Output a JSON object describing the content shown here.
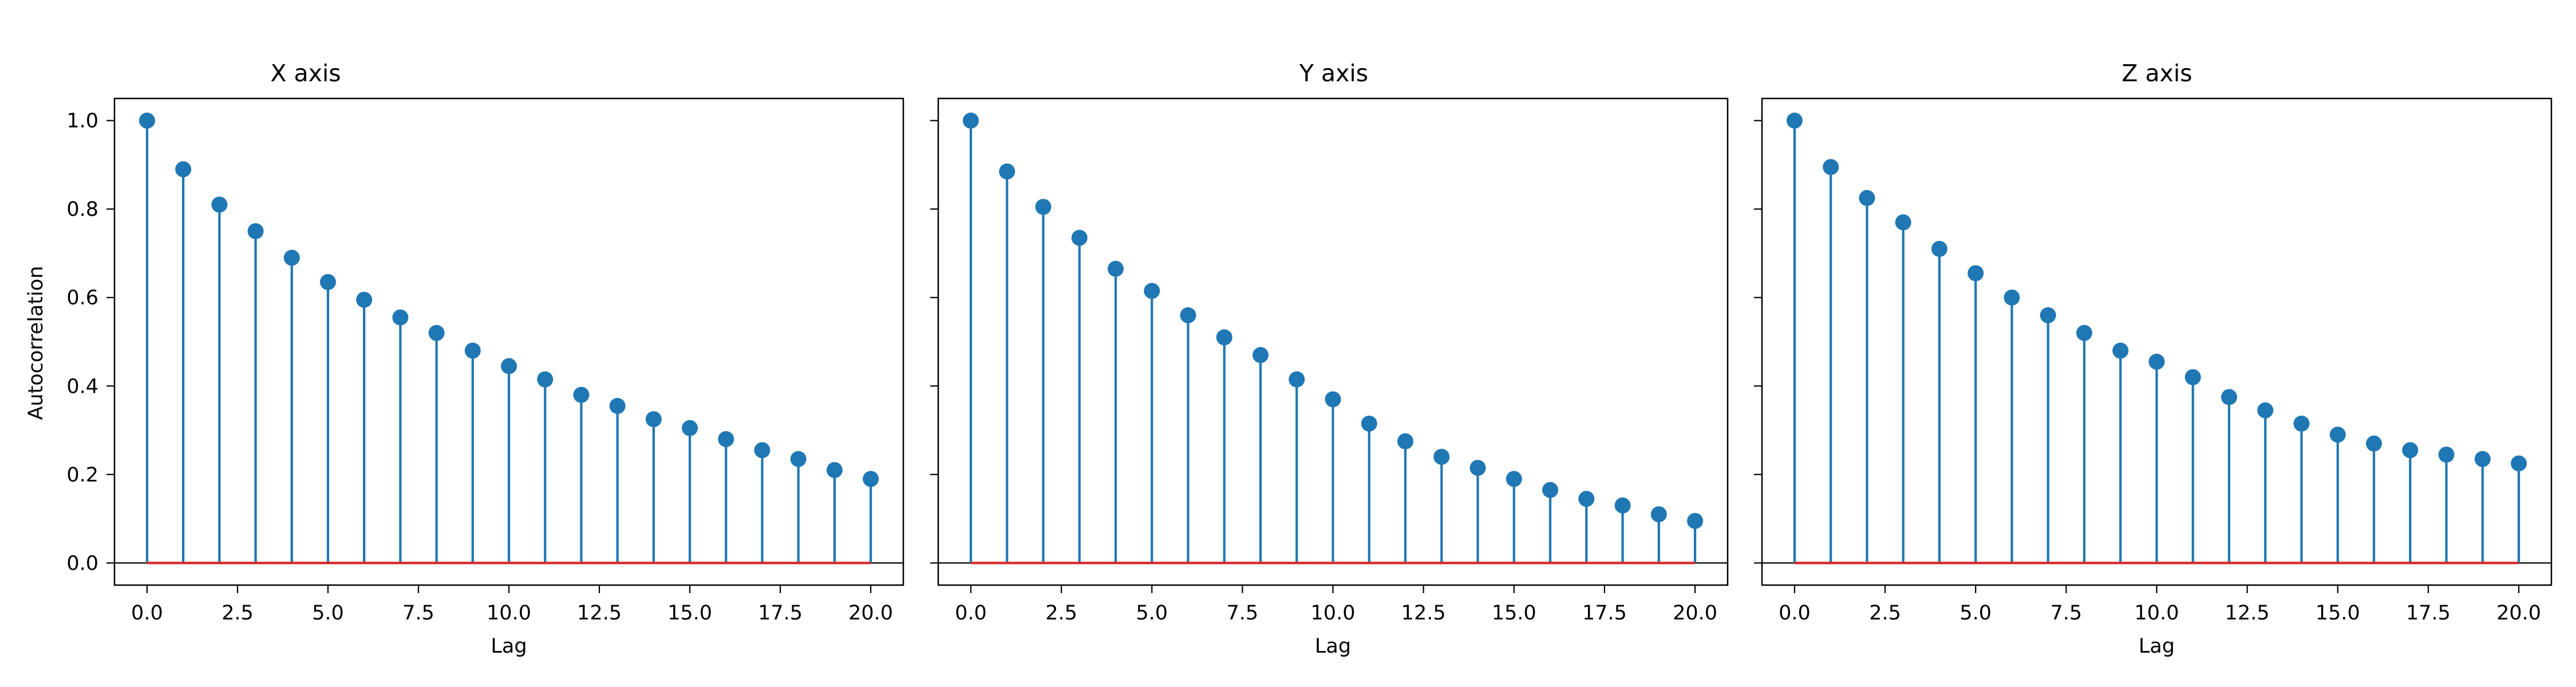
{
  "figure": {
    "ylabel": "Autocorrelation",
    "xlabel": "Lag"
  },
  "chart_data": [
    {
      "type": "stem",
      "title": "X axis",
      "xlabel": "Lag",
      "ylabel": "Autocorrelation",
      "xlim": [
        -0.9,
        20.9
      ],
      "ylim": [
        -0.05,
        1.05
      ],
      "xticks": [
        "0.0",
        "2.5",
        "5.0",
        "7.5",
        "10.0",
        "12.5",
        "15.0",
        "17.5",
        "20.0"
      ],
      "yticks": [
        "0.0",
        "0.2",
        "0.4",
        "0.6",
        "0.8",
        "1.0"
      ],
      "x": [
        0,
        1,
        2,
        3,
        4,
        5,
        6,
        7,
        8,
        9,
        10,
        11,
        12,
        13,
        14,
        15,
        16,
        17,
        18,
        19,
        20
      ],
      "values": [
        1.0,
        0.89,
        0.81,
        0.75,
        0.69,
        0.635,
        0.595,
        0.555,
        0.52,
        0.48,
        0.445,
        0.415,
        0.38,
        0.355,
        0.325,
        0.305,
        0.28,
        0.255,
        0.235,
        0.21,
        0.19
      ],
      "grid": false,
      "colors": {
        "stem": "#1f77b4",
        "baseline": "#d62728",
        "zero_line": "#000000"
      }
    },
    {
      "type": "stem",
      "title": "Y axis",
      "xlabel": "Lag",
      "ylabel": "",
      "xlim": [
        -0.9,
        20.9
      ],
      "ylim": [
        -0.05,
        1.05
      ],
      "xticks": [
        "0.0",
        "2.5",
        "5.0",
        "7.5",
        "10.0",
        "12.5",
        "15.0",
        "17.5",
        "20.0"
      ],
      "yticks": [],
      "x": [
        0,
        1,
        2,
        3,
        4,
        5,
        6,
        7,
        8,
        9,
        10,
        11,
        12,
        13,
        14,
        15,
        16,
        17,
        18,
        19,
        20
      ],
      "values": [
        1.0,
        0.885,
        0.805,
        0.735,
        0.665,
        0.615,
        0.56,
        0.51,
        0.47,
        0.415,
        0.37,
        0.315,
        0.275,
        0.24,
        0.215,
        0.19,
        0.165,
        0.145,
        0.13,
        0.11,
        0.095
      ],
      "grid": false,
      "colors": {
        "stem": "#1f77b4",
        "baseline": "#d62728",
        "zero_line": "#000000"
      }
    },
    {
      "type": "stem",
      "title": "Z axis",
      "xlabel": "Lag",
      "ylabel": "",
      "xlim": [
        -0.9,
        20.9
      ],
      "ylim": [
        -0.05,
        1.05
      ],
      "xticks": [
        "0.0",
        "2.5",
        "5.0",
        "7.5",
        "10.0",
        "12.5",
        "15.0",
        "17.5",
        "20.0"
      ],
      "yticks": [],
      "x": [
        0,
        1,
        2,
        3,
        4,
        5,
        6,
        7,
        8,
        9,
        10,
        11,
        12,
        13,
        14,
        15,
        16,
        17,
        18,
        19,
        20
      ],
      "values": [
        1.0,
        0.895,
        0.825,
        0.77,
        0.71,
        0.655,
        0.6,
        0.56,
        0.52,
        0.48,
        0.455,
        0.42,
        0.375,
        0.345,
        0.315,
        0.29,
        0.27,
        0.255,
        0.245,
        0.235,
        0.225
      ],
      "grid": false,
      "colors": {
        "stem": "#1f77b4",
        "baseline": "#d62728",
        "zero_line": "#000000"
      }
    }
  ]
}
